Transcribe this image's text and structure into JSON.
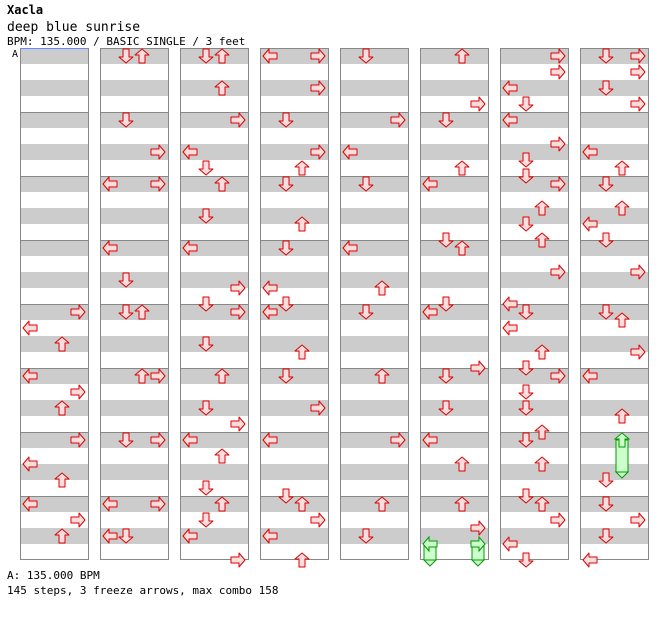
{
  "header": {
    "title": "Xacla",
    "song": "deep blue sunrise",
    "info": "BPM: 135.000 / BASIC SINGLE / 3 feet"
  },
  "markers": [
    "A"
  ],
  "footer": {
    "bpm_line": "A: 135.000 BPM",
    "stats_line": "145 steps, 3 freeze arrows, max combo 158"
  },
  "colors": {
    "band": "#cccccc",
    "lane_border": "#888888",
    "arrow_fill": "#ffdddd",
    "arrow_stroke": "#dd0000",
    "freeze_fill": "#ccffcc",
    "freeze_stroke": "#009900",
    "marker_line": "#6688ff"
  },
  "chart": {
    "columns": 8,
    "measures_per_column": 8,
    "beats_per_measure": 4,
    "arrow_directions": [
      "left",
      "down",
      "up",
      "right"
    ],
    "notes": [
      {
        "col": 0,
        "m": 4,
        "b": 0.0,
        "d": "right"
      },
      {
        "col": 0,
        "m": 4,
        "b": 1.0,
        "d": "left"
      },
      {
        "col": 0,
        "m": 4,
        "b": 2.0,
        "d": "up"
      },
      {
        "col": 0,
        "m": 5,
        "b": 0.0,
        "d": "left"
      },
      {
        "col": 0,
        "m": 5,
        "b": 1.0,
        "d": "right"
      },
      {
        "col": 0,
        "m": 5,
        "b": 2.0,
        "d": "up"
      },
      {
        "col": 0,
        "m": 6,
        "b": 0.0,
        "d": "right"
      },
      {
        "col": 0,
        "m": 6,
        "b": 1.5,
        "d": "left"
      },
      {
        "col": 0,
        "m": 6,
        "b": 2.5,
        "d": "up"
      },
      {
        "col": 0,
        "m": 7,
        "b": 0.0,
        "d": "left"
      },
      {
        "col": 0,
        "m": 7,
        "b": 1.0,
        "d": "right"
      },
      {
        "col": 0,
        "m": 7,
        "b": 2.0,
        "d": "up"
      },
      {
        "col": 1,
        "m": 0,
        "b": 0.0,
        "d": "down"
      },
      {
        "col": 1,
        "m": 0,
        "b": 0.0,
        "d": "up"
      },
      {
        "col": 1,
        "m": 1,
        "b": 0.0,
        "d": "down"
      },
      {
        "col": 1,
        "m": 1,
        "b": 2.0,
        "d": "right"
      },
      {
        "col": 1,
        "m": 2,
        "b": 0.0,
        "d": "left"
      },
      {
        "col": 1,
        "m": 2,
        "b": 0.0,
        "d": "right"
      },
      {
        "col": 1,
        "m": 3,
        "b": 0.0,
        "d": "left"
      },
      {
        "col": 1,
        "m": 3,
        "b": 2.0,
        "d": "down"
      },
      {
        "col": 1,
        "m": 4,
        "b": 0.0,
        "d": "down"
      },
      {
        "col": 1,
        "m": 4,
        "b": 0.0,
        "d": "up"
      },
      {
        "col": 1,
        "m": 5,
        "b": 0.0,
        "d": "up"
      },
      {
        "col": 1,
        "m": 5,
        "b": 0.0,
        "d": "right"
      },
      {
        "col": 1,
        "m": 6,
        "b": 0.0,
        "d": "down"
      },
      {
        "col": 1,
        "m": 6,
        "b": 0.0,
        "d": "right"
      },
      {
        "col": 1,
        "m": 7,
        "b": 0.0,
        "d": "left"
      },
      {
        "col": 1,
        "m": 7,
        "b": 0.0,
        "d": "right"
      },
      {
        "col": 1,
        "m": 7,
        "b": 2.0,
        "d": "left"
      },
      {
        "col": 1,
        "m": 7,
        "b": 2.0,
        "d": "down"
      },
      {
        "col": 2,
        "m": 0,
        "b": 0.0,
        "d": "down"
      },
      {
        "col": 2,
        "m": 0,
        "b": 0.0,
        "d": "up"
      },
      {
        "col": 2,
        "m": 0,
        "b": 2.0,
        "d": "up"
      },
      {
        "col": 2,
        "m": 1,
        "b": 0.0,
        "d": "right"
      },
      {
        "col": 2,
        "m": 1,
        "b": 2.0,
        "d": "left"
      },
      {
        "col": 2,
        "m": 1,
        "b": 3.0,
        "d": "down"
      },
      {
        "col": 2,
        "m": 2,
        "b": 0.0,
        "d": "up"
      },
      {
        "col": 2,
        "m": 2,
        "b": 2.0,
        "d": "down"
      },
      {
        "col": 2,
        "m": 3,
        "b": 0.0,
        "d": "left"
      },
      {
        "col": 2,
        "m": 3,
        "b": 2.5,
        "d": "right"
      },
      {
        "col": 2,
        "m": 3,
        "b": 3.5,
        "d": "down"
      },
      {
        "col": 2,
        "m": 4,
        "b": 0.0,
        "d": "right"
      },
      {
        "col": 2,
        "m": 4,
        "b": 2.0,
        "d": "down"
      },
      {
        "col": 2,
        "m": 5,
        "b": 0.0,
        "d": "up"
      },
      {
        "col": 2,
        "m": 5,
        "b": 2.0,
        "d": "down"
      },
      {
        "col": 2,
        "m": 5,
        "b": 3.0,
        "d": "right"
      },
      {
        "col": 2,
        "m": 6,
        "b": 0.0,
        "d": "left"
      },
      {
        "col": 2,
        "m": 6,
        "b": 1.0,
        "d": "up"
      },
      {
        "col": 2,
        "m": 6,
        "b": 3.0,
        "d": "down"
      },
      {
        "col": 2,
        "m": 7,
        "b": 0.0,
        "d": "up"
      },
      {
        "col": 2,
        "m": 7,
        "b": 1.0,
        "d": "down"
      },
      {
        "col": 2,
        "m": 7,
        "b": 2.0,
        "d": "left"
      },
      {
        "col": 2,
        "m": 7,
        "b": 3.5,
        "d": "right"
      },
      {
        "col": 3,
        "m": 0,
        "b": 0.0,
        "d": "left"
      },
      {
        "col": 3,
        "m": 0,
        "b": 0.0,
        "d": "right"
      },
      {
        "col": 3,
        "m": 0,
        "b": 2.0,
        "d": "right"
      },
      {
        "col": 3,
        "m": 1,
        "b": 0.0,
        "d": "down"
      },
      {
        "col": 3,
        "m": 1,
        "b": 2.0,
        "d": "right"
      },
      {
        "col": 3,
        "m": 1,
        "b": 3.0,
        "d": "up"
      },
      {
        "col": 3,
        "m": 2,
        "b": 0.0,
        "d": "down"
      },
      {
        "col": 3,
        "m": 2,
        "b": 2.5,
        "d": "up"
      },
      {
        "col": 3,
        "m": 3,
        "b": 0.0,
        "d": "down"
      },
      {
        "col": 3,
        "m": 3,
        "b": 2.5,
        "d": "left"
      },
      {
        "col": 3,
        "m": 3,
        "b": 3.5,
        "d": "down"
      },
      {
        "col": 3,
        "m": 4,
        "b": 0.0,
        "d": "left"
      },
      {
        "col": 3,
        "m": 4,
        "b": 2.5,
        "d": "up"
      },
      {
        "col": 3,
        "m": 5,
        "b": 0.0,
        "d": "down"
      },
      {
        "col": 3,
        "m": 5,
        "b": 2.0,
        "d": "right"
      },
      {
        "col": 3,
        "m": 6,
        "b": 0.0,
        "d": "left"
      },
      {
        "col": 3,
        "m": 6,
        "b": 3.5,
        "d": "down"
      },
      {
        "col": 3,
        "m": 7,
        "b": 0.0,
        "d": "up"
      },
      {
        "col": 3,
        "m": 7,
        "b": 1.0,
        "d": "right"
      },
      {
        "col": 3,
        "m": 7,
        "b": 2.0,
        "d": "left"
      },
      {
        "col": 3,
        "m": 7,
        "b": 3.5,
        "d": "up"
      },
      {
        "col": 4,
        "m": 0,
        "b": 0.0,
        "d": "down"
      },
      {
        "col": 4,
        "m": 1,
        "b": 0.0,
        "d": "right"
      },
      {
        "col": 4,
        "m": 1,
        "b": 2.0,
        "d": "left"
      },
      {
        "col": 4,
        "m": 2,
        "b": 0.0,
        "d": "down"
      },
      {
        "col": 4,
        "m": 3,
        "b": 0.0,
        "d": "left"
      },
      {
        "col": 4,
        "m": 3,
        "b": 2.5,
        "d": "up"
      },
      {
        "col": 4,
        "m": 4,
        "b": 0.0,
        "d": "down"
      },
      {
        "col": 4,
        "m": 5,
        "b": 0.0,
        "d": "up"
      },
      {
        "col": 4,
        "m": 6,
        "b": 0.0,
        "d": "right"
      },
      {
        "col": 4,
        "m": 7,
        "b": 0.0,
        "d": "up"
      },
      {
        "col": 4,
        "m": 7,
        "b": 2.0,
        "d": "down"
      },
      {
        "col": 5,
        "m": 0,
        "b": 0.0,
        "d": "up"
      },
      {
        "col": 5,
        "m": 0,
        "b": 3.0,
        "d": "right"
      },
      {
        "col": 5,
        "m": 1,
        "b": 0.0,
        "d": "down"
      },
      {
        "col": 5,
        "m": 1,
        "b": 3.0,
        "d": "up"
      },
      {
        "col": 5,
        "m": 2,
        "b": 0.0,
        "d": "left"
      },
      {
        "col": 5,
        "m": 2,
        "b": 3.5,
        "d": "down"
      },
      {
        "col": 5,
        "m": 3,
        "b": 0.0,
        "d": "up"
      },
      {
        "col": 5,
        "m": 3,
        "b": 3.5,
        "d": "down"
      },
      {
        "col": 5,
        "m": 4,
        "b": 0.0,
        "d": "left"
      },
      {
        "col": 5,
        "m": 4,
        "b": 3.5,
        "d": "right"
      },
      {
        "col": 5,
        "m": 5,
        "b": 0.0,
        "d": "down"
      },
      {
        "col": 5,
        "m": 5,
        "b": 2.0,
        "d": "down"
      },
      {
        "col": 5,
        "m": 6,
        "b": 0.0,
        "d": "left"
      },
      {
        "col": 5,
        "m": 6,
        "b": 1.5,
        "d": "up"
      },
      {
        "col": 5,
        "m": 7,
        "b": 0.0,
        "d": "up"
      },
      {
        "col": 5,
        "m": 7,
        "b": 1.5,
        "d": "right"
      },
      {
        "col": 6,
        "m": 0,
        "b": 0.0,
        "d": "right"
      },
      {
        "col": 6,
        "m": 0,
        "b": 1.0,
        "d": "right"
      },
      {
        "col": 6,
        "m": 0,
        "b": 2.0,
        "d": "left"
      },
      {
        "col": 6,
        "m": 0,
        "b": 3.0,
        "d": "down"
      },
      {
        "col": 6,
        "m": 1,
        "b": 0.0,
        "d": "left"
      },
      {
        "col": 6,
        "m": 1,
        "b": 1.5,
        "d": "right"
      },
      {
        "col": 6,
        "m": 1,
        "b": 2.5,
        "d": "down"
      },
      {
        "col": 6,
        "m": 1,
        "b": 3.5,
        "d": "down"
      },
      {
        "col": 6,
        "m": 2,
        "b": 0.0,
        "d": "right"
      },
      {
        "col": 6,
        "m": 2,
        "b": 1.5,
        "d": "up"
      },
      {
        "col": 6,
        "m": 2,
        "b": 2.5,
        "d": "down"
      },
      {
        "col": 6,
        "m": 2,
        "b": 3.5,
        "d": "up"
      },
      {
        "col": 6,
        "m": 3,
        "b": 1.5,
        "d": "right"
      },
      {
        "col": 6,
        "m": 3,
        "b": 3.5,
        "d": "left"
      },
      {
        "col": 6,
        "m": 4,
        "b": 0.0,
        "d": "down"
      },
      {
        "col": 6,
        "m": 4,
        "b": 1.0,
        "d": "left"
      },
      {
        "col": 6,
        "m": 4,
        "b": 2.5,
        "d": "up"
      },
      {
        "col": 6,
        "m": 4,
        "b": 3.5,
        "d": "down"
      },
      {
        "col": 6,
        "m": 5,
        "b": 0.0,
        "d": "right"
      },
      {
        "col": 6,
        "m": 5,
        "b": 1.0,
        "d": "down"
      },
      {
        "col": 6,
        "m": 5,
        "b": 2.0,
        "d": "down"
      },
      {
        "col": 6,
        "m": 5,
        "b": 3.5,
        "d": "up"
      },
      {
        "col": 6,
        "m": 6,
        "b": 0.0,
        "d": "down"
      },
      {
        "col": 6,
        "m": 6,
        "b": 1.5,
        "d": "up"
      },
      {
        "col": 6,
        "m": 6,
        "b": 3.5,
        "d": "down"
      },
      {
        "col": 6,
        "m": 7,
        "b": 0.0,
        "d": "up"
      },
      {
        "col": 6,
        "m": 7,
        "b": 1.0,
        "d": "right"
      },
      {
        "col": 6,
        "m": 7,
        "b": 2.5,
        "d": "left"
      },
      {
        "col": 6,
        "m": 7,
        "b": 3.5,
        "d": "down"
      },
      {
        "col": 7,
        "m": 0,
        "b": 0.0,
        "d": "down"
      },
      {
        "col": 7,
        "m": 0,
        "b": 0.0,
        "d": "right"
      },
      {
        "col": 7,
        "m": 0,
        "b": 1.0,
        "d": "right"
      },
      {
        "col": 7,
        "m": 0,
        "b": 2.0,
        "d": "down"
      },
      {
        "col": 7,
        "m": 0,
        "b": 3.0,
        "d": "right"
      },
      {
        "col": 7,
        "m": 1,
        "b": 2.0,
        "d": "left"
      },
      {
        "col": 7,
        "m": 1,
        "b": 3.0,
        "d": "up"
      },
      {
        "col": 7,
        "m": 2,
        "b": 0.0,
        "d": "down"
      },
      {
        "col": 7,
        "m": 2,
        "b": 1.5,
        "d": "up"
      },
      {
        "col": 7,
        "m": 2,
        "b": 2.5,
        "d": "left"
      },
      {
        "col": 7,
        "m": 2,
        "b": 3.5,
        "d": "down"
      },
      {
        "col": 7,
        "m": 3,
        "b": 1.5,
        "d": "right"
      },
      {
        "col": 7,
        "m": 4,
        "b": 0.0,
        "d": "down"
      },
      {
        "col": 7,
        "m": 4,
        "b": 0.5,
        "d": "up"
      },
      {
        "col": 7,
        "m": 4,
        "b": 2.5,
        "d": "right"
      },
      {
        "col": 7,
        "m": 5,
        "b": 0.0,
        "d": "left"
      },
      {
        "col": 7,
        "m": 5,
        "b": 2.5,
        "d": "up"
      },
      {
        "col": 7,
        "m": 6,
        "b": 2.5,
        "d": "down"
      },
      {
        "col": 7,
        "m": 7,
        "b": 0.0,
        "d": "down"
      },
      {
        "col": 7,
        "m": 7,
        "b": 1.0,
        "d": "right"
      },
      {
        "col": 7,
        "m": 7,
        "b": 2.0,
        "d": "down"
      },
      {
        "col": 7,
        "m": 7,
        "b": 3.5,
        "d": "left"
      }
    ],
    "freezes": [
      {
        "col": 5,
        "m": 7,
        "b_start": 2.5,
        "b_end": 3.5,
        "d": "left"
      },
      {
        "col": 5,
        "m": 7,
        "b_start": 2.5,
        "b_end": 3.5,
        "d": "right"
      },
      {
        "col": 7,
        "m": 6,
        "b_start": 0.0,
        "b_end": 2.0,
        "d": "up"
      }
    ]
  }
}
